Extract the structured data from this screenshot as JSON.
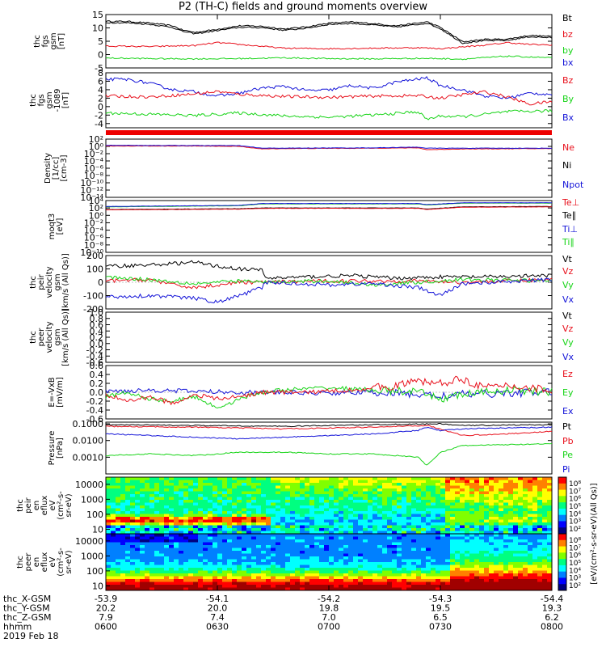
{
  "title": "P2 (TH-C) fields and ground moments overview",
  "colors": {
    "black": "#000000",
    "red": "#e8101c",
    "green": "#18d418",
    "blue": "#1414d8",
    "bar": "#ee0000"
  },
  "chart_data": [
    {
      "panel": "fgs_gsm",
      "type": "line",
      "ylabel": [
        "thc",
        "fgs",
        "gsm",
        "[nT]"
      ],
      "ylim": [
        -5,
        15
      ],
      "yticks": [
        "15",
        "10",
        "5",
        "0",
        "-5"
      ],
      "legend": [
        "Bt",
        "bz",
        "by",
        "bx"
      ],
      "series": [
        {
          "name": "Bt",
          "color": "black",
          "x": [
            0,
            0.05,
            0.1,
            0.15,
            0.17,
            0.2,
            0.25,
            0.3,
            0.35,
            0.4,
            0.45,
            0.5,
            0.55,
            0.6,
            0.65,
            0.7,
            0.72,
            0.75,
            0.8,
            0.85,
            0.9,
            0.95,
            1
          ],
          "y": [
            12.5,
            12.4,
            11.8,
            10.8,
            9.3,
            8.3,
            9.5,
            10.8,
            10.6,
            9.6,
            10.4,
            11.8,
            12.2,
            11.6,
            10.8,
            11.8,
            12.3,
            10.2,
            4.8,
            5.7,
            5.8,
            7.2,
            6.8
          ]
        },
        {
          "name": "bz",
          "color": "black",
          "x": [
            0,
            0.05,
            0.1,
            0.15,
            0.17,
            0.2,
            0.25,
            0.3,
            0.35,
            0.4,
            0.45,
            0.5,
            0.55,
            0.6,
            0.65,
            0.7,
            0.72,
            0.75,
            0.8,
            0.85,
            0.9,
            0.95,
            1
          ],
          "y": [
            12.0,
            11.9,
            11.3,
            10.2,
            8.8,
            7.8,
            9.0,
            10.2,
            10.1,
            9.1,
            9.9,
            11.3,
            11.7,
            11.1,
            10.3,
            11.3,
            11.8,
            9.7,
            4.3,
            5.2,
            5.3,
            6.7,
            6.3
          ]
        },
        {
          "name": "by",
          "color": "red",
          "x": [
            0,
            0.1,
            0.2,
            0.25,
            0.3,
            0.4,
            0.5,
            0.6,
            0.7,
            0.75,
            0.8,
            0.85,
            0.9,
            0.95,
            1
          ],
          "y": [
            3.2,
            3.0,
            3.4,
            4.5,
            3.8,
            2.4,
            2.2,
            2.4,
            2.6,
            2.2,
            2.9,
            3.5,
            4.5,
            3.8,
            3.6
          ]
        },
        {
          "name": "bx",
          "color": "green",
          "x": [
            0,
            0.1,
            0.2,
            0.3,
            0.4,
            0.5,
            0.6,
            0.7,
            0.75,
            0.8,
            0.9,
            1
          ],
          "y": [
            -1.3,
            -1.5,
            -1.6,
            -1.5,
            -1.2,
            -1.5,
            -1.6,
            -1.4,
            -1.5,
            -1.7,
            -0.6,
            -1.2
          ]
        }
      ]
    },
    {
      "panel": "fgs_gsm_coarse",
      "type": "line",
      "ylabel": [
        "thc",
        "fgs",
        "gsm",
        "-1089",
        "[nT]"
      ],
      "ylim": [
        -5,
        8
      ],
      "yticks": [
        "8",
        "6",
        "4",
        "2",
        "0",
        "-2",
        "-4"
      ],
      "legend": [
        "Bz",
        "By",
        "Bx"
      ],
      "series": [
        {
          "name": "Bz",
          "color": "blue",
          "x": [
            0,
            0.05,
            0.1,
            0.15,
            0.2,
            0.25,
            0.3,
            0.35,
            0.4,
            0.45,
            0.5,
            0.55,
            0.6,
            0.65,
            0.72,
            0.75,
            0.8,
            0.85,
            0.9,
            0.95,
            1
          ],
          "y": [
            6.5,
            6.4,
            5.5,
            4.0,
            3.5,
            2.5,
            3.2,
            4.4,
            4.8,
            3.8,
            3.9,
            5.0,
            4.3,
            5.8,
            6.8,
            5.0,
            4.0,
            2.5,
            2.0,
            3.2,
            2.9
          ]
        },
        {
          "name": "By",
          "color": "red",
          "x": [
            0,
            0.1,
            0.2,
            0.25,
            0.3,
            0.4,
            0.5,
            0.6,
            0.7,
            0.75,
            0.8,
            0.85,
            0.9,
            0.95,
            1
          ],
          "y": [
            2.5,
            2.3,
            3.0,
            3.6,
            2.9,
            2.4,
            2.2,
            2.5,
            2.6,
            2.0,
            2.8,
            3.5,
            2.3,
            0.6,
            1.2
          ]
        },
        {
          "name": "Bx",
          "color": "green",
          "x": [
            0,
            0.1,
            0.2,
            0.3,
            0.4,
            0.5,
            0.6,
            0.7,
            0.72,
            0.75,
            0.8,
            0.9,
            1
          ],
          "y": [
            -1.5,
            -1.8,
            -2.1,
            -1.5,
            -2.2,
            -2.5,
            -2.0,
            -1.2,
            -3.0,
            -2.2,
            -2.4,
            -1.2,
            -1.0
          ]
        }
      ]
    },
    {
      "panel": "density",
      "type": "line",
      "scale": "log",
      "ylabel": [
        "Density",
        "[1/cc]",
        "[cm-3]"
      ],
      "ylim": [
        -14,
        2
      ],
      "yticks": [
        "10²",
        "10⁰",
        "10⁻²",
        "10⁻⁴",
        "10⁻⁶",
        "10⁻⁸",
        "10⁻¹⁰",
        "10⁻¹²",
        "10⁻¹⁴"
      ],
      "legend": [
        "Ne",
        "Ni",
        "Npot"
      ],
      "series": [
        {
          "name": "Ne",
          "color": "red",
          "x": [
            0,
            0.2,
            0.3,
            0.35,
            0.4,
            0.6,
            0.7,
            0.72,
            0.8,
            1
          ],
          "y": [
            0.1,
            0.1,
            0.0,
            -0.7,
            -0.6,
            -0.5,
            -0.4,
            -0.9,
            -0.7,
            -0.6
          ]
        },
        {
          "name": "Npot",
          "color": "blue",
          "x": [
            0,
            0.3,
            0.35,
            0.6,
            0.7,
            0.72,
            1
          ],
          "y": [
            0.3,
            0.2,
            -0.5,
            -0.4,
            -0.2,
            -0.5,
            -0.5
          ]
        }
      ]
    },
    {
      "panel": "temperature",
      "type": "line",
      "scale": "log",
      "ylabel": [
        "moqt3",
        "[eV]"
      ],
      "ylim": [
        -10,
        4
      ],
      "yticks": [
        "10⁴",
        "10²",
        "10⁰",
        "10⁻²",
        "10⁻⁴",
        "10⁻⁶",
        "10⁻⁸",
        "10⁻¹⁰"
      ],
      "legend": [
        "Te⊥",
        "Te∥",
        "Ti⊥",
        "Ti∥"
      ],
      "series": [
        {
          "name": "Ti∥",
          "color": "green",
          "x": [
            0,
            0.3,
            0.35,
            0.6,
            0.7,
            0.72,
            0.8,
            1
          ],
          "y": [
            2.3,
            2.6,
            3.1,
            3.1,
            3.1,
            2.8,
            3.3,
            3.3
          ]
        },
        {
          "name": "Ti⊥",
          "color": "blue",
          "x": [
            0,
            0.3,
            0.35,
            0.6,
            0.7,
            0.72,
            0.8,
            1
          ],
          "y": [
            2.4,
            2.7,
            3.2,
            3.2,
            3.2,
            2.9,
            3.4,
            3.4
          ]
        },
        {
          "name": "Te∥",
          "color": "black",
          "x": [
            0,
            0.3,
            0.35,
            0.7,
            0.72,
            0.8,
            1
          ],
          "y": [
            1.6,
            1.8,
            2.0,
            2.0,
            1.7,
            2.3,
            2.4
          ]
        },
        {
          "name": "Te⊥",
          "color": "red",
          "x": [
            0,
            0.3,
            0.35,
            0.7,
            0.72,
            0.8,
            1
          ],
          "y": [
            1.5,
            1.7,
            1.9,
            1.9,
            1.6,
            2.2,
            2.3
          ]
        }
      ]
    },
    {
      "panel": "ion_velocity",
      "type": "line",
      "ylabel": [
        "thc",
        "peir",
        "velocity",
        "gsm",
        "[km/s (All Qs)]"
      ],
      "ylim": [
        -200,
        200
      ],
      "yticks": [
        "200",
        "100",
        "0",
        "-100",
        "-200"
      ],
      "legend": [
        "Vt",
        "Vz",
        "Vy",
        "Vx"
      ],
      "series": [
        {
          "name": "Vt",
          "color": "black",
          "x": [
            0,
            0.1,
            0.2,
            0.25,
            0.3,
            0.35,
            0.36,
            0.45,
            0.55,
            0.65,
            0.75,
            0.85,
            1
          ],
          "y": [
            120,
            130,
            150,
            120,
            100,
            90,
            30,
            40,
            50,
            30,
            40,
            40,
            50
          ]
        },
        {
          "name": "Vz",
          "color": "red",
          "x": [
            0,
            0.1,
            0.15,
            0.2,
            0.3,
            0.36,
            0.5,
            0.7,
            0.8,
            1
          ],
          "y": [
            10,
            20,
            -20,
            -40,
            0,
            0,
            10,
            10,
            0,
            20
          ]
        },
        {
          "name": "Vy",
          "color": "green",
          "x": [
            0,
            0.1,
            0.2,
            0.3,
            0.36,
            0.5,
            0.6,
            0.7,
            0.8,
            1
          ],
          "y": [
            40,
            20,
            -10,
            10,
            0,
            10,
            -20,
            0,
            20,
            10
          ]
        },
        {
          "name": "Vx",
          "color": "blue",
          "x": [
            0,
            0.1,
            0.2,
            0.25,
            0.3,
            0.35,
            0.36,
            0.5,
            0.6,
            0.7,
            0.75,
            0.8,
            1
          ],
          "y": [
            -110,
            -100,
            -120,
            -150,
            -100,
            -40,
            0,
            -20,
            -10,
            -40,
            -100,
            -10,
            20
          ]
        }
      ]
    },
    {
      "panel": "electron_velocity",
      "type": "line",
      "ylabel": [
        "thc",
        "peer",
        "velocity",
        "gsm",
        "[km/s (All Qs)]"
      ],
      "ylim": [
        -0.6,
        1.0
      ],
      "yticks": [
        "1.0",
        "0.8",
        "0.6",
        "0.4",
        "0.2",
        "0.0",
        "-0.2",
        "-0.4",
        "-0.6"
      ],
      "legend": [
        "Vt",
        "Vz",
        "Vy",
        "Vx"
      ],
      "series": []
    },
    {
      "panel": "efield",
      "type": "line",
      "ylabel": [
        "E=-VxB",
        "[mV/m]"
      ],
      "ylim": [
        -0.6,
        0.6
      ],
      "yticks": [
        "0.6",
        "0.4",
        "0.2",
        "0.0",
        "-0.2",
        "-0.4",
        "-0.6"
      ],
      "legend": [
        "Ez",
        "Ey",
        "Ex"
      ],
      "series": [
        {
          "name": "Ex",
          "color": "blue",
          "x": [
            0,
            0.1,
            0.2,
            0.3,
            0.35,
            0.5,
            0.6,
            0.7,
            0.75,
            0.8,
            0.9,
            1
          ],
          "y": [
            0.02,
            0.05,
            0.02,
            0.0,
            0.0,
            -0.02,
            0.0,
            -0.05,
            -0.08,
            -0.05,
            -0.02,
            0.0
          ]
        },
        {
          "name": "Ey",
          "color": "green",
          "x": [
            0,
            0.05,
            0.1,
            0.15,
            0.2,
            0.25,
            0.3,
            0.35,
            0.4,
            0.5,
            0.6,
            0.7,
            0.75,
            0.8,
            0.9,
            1
          ],
          "y": [
            -0.1,
            0.0,
            -0.15,
            -0.2,
            -0.1,
            -0.35,
            -0.15,
            0.0,
            0.05,
            0.1,
            0.05,
            0.0,
            -0.15,
            -0.05,
            0.05,
            0.0
          ]
        },
        {
          "name": "Ez",
          "color": "red",
          "x": [
            0,
            0.05,
            0.1,
            0.15,
            0.2,
            0.25,
            0.3,
            0.35,
            0.45,
            0.55,
            0.65,
            0.7,
            0.75,
            0.8,
            0.85,
            0.9,
            1
          ],
          "y": [
            -0.05,
            -0.2,
            -0.1,
            -0.25,
            -0.05,
            -0.15,
            -0.1,
            0.0,
            0.0,
            0.05,
            0.15,
            0.25,
            0.2,
            0.3,
            0.1,
            0.15,
            0.05
          ]
        }
      ]
    },
    {
      "panel": "pressure",
      "type": "line",
      "scale": "log",
      "ylabel": [
        "Pressure",
        "[nPa]"
      ],
      "ylim": [
        -4,
        -0.9
      ],
      "yticks": [
        "0.1000",
        "0.0100",
        "0.0010"
      ],
      "legend": [
        "Pt",
        "Pb",
        "Pe",
        "Pi"
      ],
      "series": [
        {
          "name": "Pt",
          "color": "black",
          "x": [
            0,
            0.2,
            0.4,
            0.6,
            0.75,
            0.8,
            1
          ],
          "y": [
            -1.05,
            -1.1,
            -1.15,
            -1.05,
            -1.0,
            -1.1,
            -1.05
          ]
        },
        {
          "name": "Pb",
          "color": "red",
          "x": [
            0,
            0.2,
            0.4,
            0.6,
            0.72,
            0.75,
            0.8,
            0.9,
            1
          ],
          "y": [
            -1.15,
            -1.2,
            -1.3,
            -1.2,
            -1.1,
            -1.3,
            -1.7,
            -1.6,
            -1.45
          ]
        },
        {
          "name": "Pi",
          "color": "blue",
          "x": [
            0,
            0.1,
            0.2,
            0.3,
            0.4,
            0.5,
            0.6,
            0.7,
            0.72,
            0.75,
            0.8,
            1
          ],
          "y": [
            -1.6,
            -1.7,
            -1.8,
            -1.9,
            -1.8,
            -1.7,
            -1.6,
            -1.4,
            -1.2,
            -1.4,
            -1.3,
            -1.2
          ]
        },
        {
          "name": "Pe",
          "color": "green",
          "x": [
            0,
            0.1,
            0.2,
            0.3,
            0.4,
            0.5,
            0.6,
            0.7,
            0.72,
            0.75,
            0.8,
            1
          ],
          "y": [
            -2.9,
            -2.8,
            -2.9,
            -2.7,
            -2.7,
            -2.8,
            -2.8,
            -3.0,
            -3.5,
            -2.7,
            -2.3,
            -2.2
          ]
        }
      ]
    },
    {
      "panel": "ion_eflux",
      "type": "heatmap",
      "scale": "log",
      "ylabel": [
        "thc",
        "peir",
        "en",
        "eflux",
        "eV",
        "(cm²-s-",
        "sr-eV)"
      ],
      "ylim": [
        5,
        30000
      ],
      "yticks": [
        "10000",
        "1000",
        "100",
        "10"
      ],
      "colorbar_label": "[eV/(cm²-s-sr-eV)(All Qs)]",
      "colorbar_ticks": [
        "10⁸",
        "10⁷",
        "10⁶",
        "10⁵",
        "10⁴",
        "10³",
        "10²"
      ]
    },
    {
      "panel": "electron_eflux",
      "type": "heatmap",
      "scale": "log",
      "ylabel": [
        "thc",
        "peer",
        "en",
        "eflux",
        "eV",
        "(cm²-s-",
        "sr-eV)"
      ],
      "ylim": [
        5,
        30000
      ],
      "yticks": [
        "10000",
        "1000",
        "100",
        "10"
      ],
      "colorbar_label": "[eV/(cm²-s-sr-eV)(All Qs)]",
      "colorbar_ticks": [
        "10⁸",
        "10⁷",
        "10⁶",
        "10⁵",
        "10⁴",
        "10³",
        "10²"
      ]
    },
    {
      "panel": "time_axis",
      "type": "table",
      "row_labels": [
        "thc_X-GSM",
        "thc_Y-GSM",
        "thc_Z-GSM",
        "hhmm",
        "2019 Feb 18"
      ],
      "columns": [
        [
          "-53.9",
          "20.2",
          "7.9",
          "0600"
        ],
        [
          "-54.1",
          "20.0",
          "7.4",
          "0630"
        ],
        [
          "-54.2",
          "19.8",
          "7.0",
          "0700"
        ],
        [
          "-54.3",
          "19.5",
          "6.5",
          "0730"
        ],
        [
          "-54.4",
          "19.3",
          "6.2",
          "0800"
        ]
      ]
    }
  ]
}
